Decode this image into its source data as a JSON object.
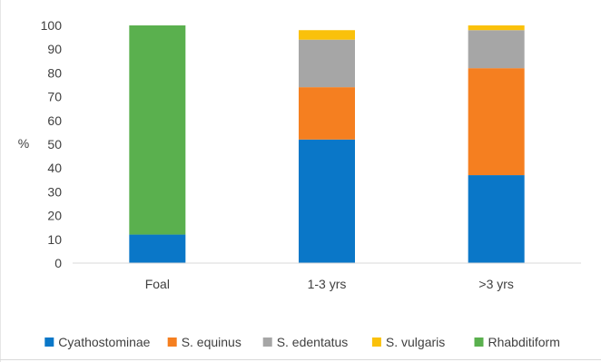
{
  "chart_data": {
    "type": "bar",
    "stacked": true,
    "categories": [
      "Foal",
      "1-3 yrs",
      ">3 yrs"
    ],
    "series": [
      {
        "name": "Cyathostominae",
        "color": "#0a77c8",
        "values": [
          12,
          52,
          37
        ]
      },
      {
        "name": "S. equinus",
        "color": "#f57f20",
        "values": [
          0,
          22,
          45
        ]
      },
      {
        "name": "S. edentatus",
        "color": "#a6a6a6",
        "values": [
          0,
          20,
          16
        ]
      },
      {
        "name": "S. vulgaris",
        "color": "#fac10b",
        "values": [
          0,
          4,
          2
        ]
      },
      {
        "name": "Rhabditiform",
        "color": "#5ab04e",
        "values": [
          88,
          0,
          0
        ]
      }
    ],
    "ylabel": "%",
    "ylim": [
      0,
      100
    ],
    "yticks": [
      0,
      10,
      20,
      30,
      40,
      50,
      60,
      70,
      80,
      90,
      100
    ],
    "grid": false,
    "legend_position": "bottom"
  }
}
